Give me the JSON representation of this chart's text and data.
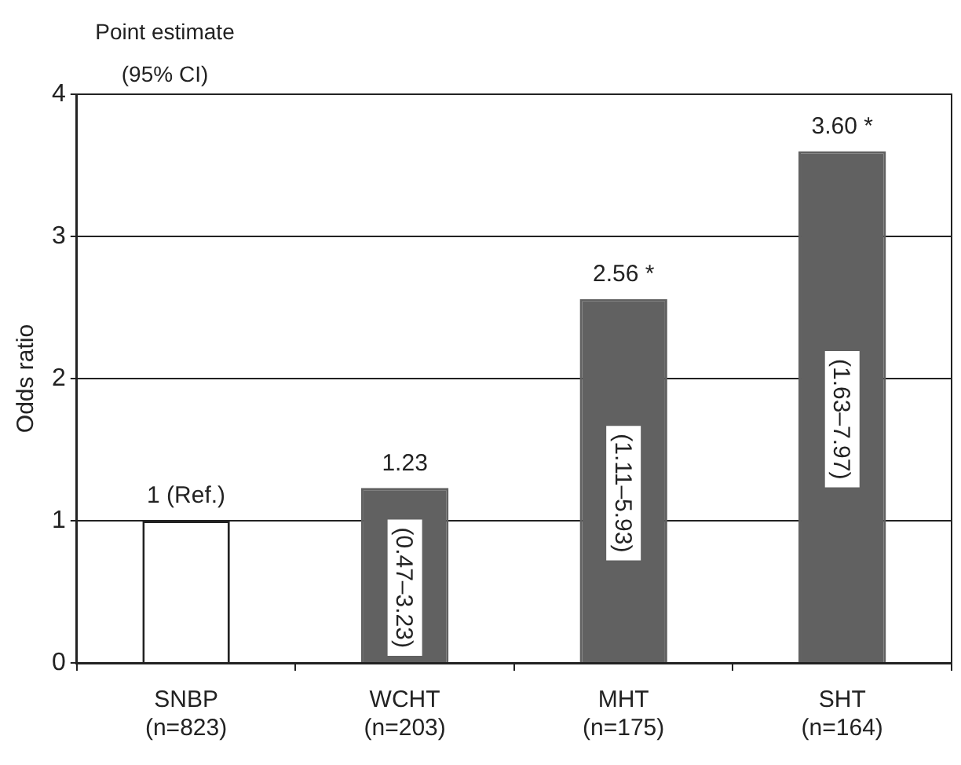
{
  "chart_data": {
    "type": "bar",
    "title": "Point estimate\n(95% CI)",
    "ylabel": "Odds ratio",
    "categories": [
      "SNBP\n(n=823)",
      "WCHT\n(n=203)",
      "MHT\n(n=175)",
      "SHT\n(n=164)"
    ],
    "values": [
      1,
      1.23,
      2.56,
      3.6
    ],
    "colors": [
      "#ffffff",
      "#616161",
      "#616161",
      "#616161"
    ],
    "value_labels": [
      "1 (Ref.)",
      "1.23",
      "2.56 *",
      "3.60 *"
    ],
    "annotations": [
      "(0.47–3.23)",
      "(1.11–5.93)",
      "(1.63–7.97)"
    ],
    "ylim": [
      0,
      4
    ],
    "yticks": [
      0,
      1,
      2,
      3,
      4
    ],
    "grid": "y",
    "legend": false
  }
}
